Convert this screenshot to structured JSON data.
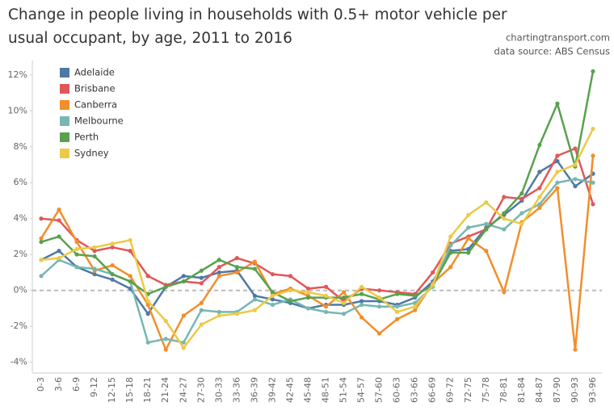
{
  "chart_data": {
    "type": "line",
    "title": "Change in people living in households with 0.5+ motor vehicle per usual occupant, by age, 2011 to 2016",
    "source_lines": [
      "chartingtransport.com",
      "data source: ABS Census"
    ],
    "categories": [
      "0-3",
      "3-6",
      "6-9",
      "9-12",
      "12-15",
      "15-18",
      "18-21",
      "21-24",
      "24-27",
      "27-30",
      "30-33",
      "33-36",
      "36-39",
      "39-42",
      "42-45",
      "45-48",
      "48-51",
      "51-54",
      "54-57",
      "57-60",
      "60-63",
      "63-66",
      "66-69",
      "69-72",
      "72-75",
      "75-78",
      "78-81",
      "81-84",
      "84-87",
      "87-90",
      "90-93",
      "93-96"
    ],
    "series": [
      {
        "name": "Adelaide",
        "color": "#4e79a7",
        "values": [
          1.7,
          2.2,
          1.3,
          0.9,
          0.6,
          0.1,
          -1.3,
          0.2,
          0.8,
          0.7,
          1.0,
          1.1,
          -0.3,
          -0.5,
          -0.7,
          -1.0,
          -0.8,
          -0.8,
          -0.6,
          -0.6,
          -0.8,
          -0.4,
          0.5,
          2.2,
          2.3,
          3.5,
          4.2,
          5.0,
          6.6,
          7.2,
          5.8,
          6.5
        ]
      },
      {
        "name": "Brisbane",
        "color": "#e15759",
        "values": [
          4.0,
          3.9,
          2.8,
          2.2,
          2.4,
          2.2,
          0.8,
          0.3,
          0.5,
          0.4,
          1.3,
          1.8,
          1.5,
          0.9,
          0.8,
          0.1,
          0.2,
          -0.6,
          0.1,
          0.0,
          -0.1,
          -0.2,
          1.0,
          2.6,
          3.0,
          3.4,
          5.2,
          5.1,
          5.7,
          7.5,
          7.9,
          4.8
        ]
      },
      {
        "name": "Canberra",
        "color": "#f28e2b",
        "values": [
          2.9,
          4.5,
          2.7,
          1.1,
          1.4,
          0.8,
          -0.8,
          -3.3,
          -1.4,
          -0.7,
          0.8,
          1.0,
          1.6,
          -0.2,
          0.1,
          -0.3,
          -0.9,
          -0.1,
          -1.5,
          -2.4,
          -1.6,
          -1.1,
          0.4,
          1.3,
          2.9,
          2.2,
          -0.1,
          3.8,
          4.6,
          5.7,
          -3.3,
          7.5
        ]
      },
      {
        "name": "Melbourne",
        "color": "#76b7b2",
        "values": [
          0.8,
          1.7,
          1.3,
          1.2,
          0.9,
          0.5,
          -2.9,
          -2.7,
          -2.9,
          -1.1,
          -1.2,
          -1.2,
          -0.5,
          -0.8,
          -0.5,
          -1.0,
          -1.2,
          -1.3,
          -0.8,
          -0.9,
          -0.9,
          -0.7,
          0.2,
          2.5,
          3.5,
          3.7,
          3.4,
          4.3,
          4.8,
          6.0,
          6.2,
          6.0
        ]
      },
      {
        "name": "Perth",
        "color": "#59a14f",
        "values": [
          2.7,
          3.0,
          2.0,
          1.9,
          0.9,
          0.5,
          -0.2,
          0.2,
          0.5,
          1.1,
          1.7,
          1.3,
          1.2,
          -0.1,
          -0.6,
          -0.4,
          -0.4,
          -0.4,
          -0.2,
          -0.5,
          -0.2,
          -0.3,
          0.3,
          2.1,
          2.1,
          3.4,
          4.3,
          5.4,
          8.1,
          10.4,
          6.9,
          12.2
        ]
      },
      {
        "name": "Sydney",
        "color": "#edc948",
        "values": [
          1.7,
          1.8,
          2.3,
          2.4,
          2.6,
          2.8,
          -0.6,
          -1.7,
          -3.2,
          -1.9,
          -1.4,
          -1.3,
          -1.1,
          -0.3,
          0.0,
          -0.1,
          -0.3,
          -0.7,
          0.2,
          -0.4,
          -1.2,
          -0.9,
          0.3,
          3.0,
          4.2,
          4.9,
          4.0,
          3.7,
          5.2,
          6.6,
          7.0,
          9.0
        ]
      }
    ],
    "ylim": [
      -4.6,
      12.8
    ],
    "yticks": [
      {
        "value": -4,
        "label": "-4%"
      },
      {
        "value": -2,
        "label": "-2%"
      },
      {
        "value": 0,
        "label": "0%"
      },
      {
        "value": 2,
        "label": "2%"
      },
      {
        "value": 4,
        "label": "4%"
      },
      {
        "value": 6,
        "label": "6%"
      },
      {
        "value": 8,
        "label": "8%"
      },
      {
        "value": 10,
        "label": "10%"
      },
      {
        "value": 12,
        "label": "12%"
      }
    ],
    "grid": false,
    "zero_line": true,
    "legend_position": "top-left"
  }
}
